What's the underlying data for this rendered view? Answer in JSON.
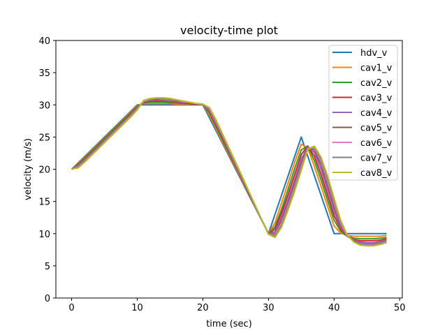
{
  "chart_data": {
    "type": "line",
    "title": "velocity-time plot",
    "xlabel": "time (sec)",
    "ylabel": "velocity (m/s)",
    "xlim": [
      -2.4,
      50.4
    ],
    "ylim": [
      0,
      40
    ],
    "xticks": [
      0,
      10,
      20,
      30,
      40,
      50
    ],
    "yticks": [
      0,
      5,
      10,
      15,
      20,
      25,
      30,
      35,
      40
    ],
    "grid": false,
    "legend_position": "top-right",
    "x": [
      0,
      1,
      2,
      3,
      4,
      5,
      6,
      7,
      8,
      9,
      10,
      11,
      12,
      13,
      14,
      15,
      16,
      17,
      18,
      19,
      20,
      21,
      22,
      23,
      24,
      25,
      26,
      27,
      28,
      29,
      30,
      31,
      32,
      33,
      34,
      35,
      36,
      37,
      38,
      39,
      40,
      41,
      42,
      43,
      44,
      45,
      46,
      47,
      48
    ],
    "series": [
      {
        "name": "hdv_v",
        "color": "#1f77b4",
        "values": [
          20,
          21,
          22,
          23,
          24,
          25,
          26,
          27,
          28,
          29,
          30,
          30,
          30,
          30,
          30,
          30,
          30,
          30,
          30,
          30,
          30,
          28,
          26,
          24,
          22,
          20,
          18,
          16,
          14,
          12,
          10,
          13,
          16,
          19,
          22,
          25,
          22,
          19,
          16,
          13,
          10,
          10,
          10,
          10,
          10,
          10,
          10,
          10,
          10
        ]
      },
      {
        "name": "cav1_v",
        "color": "#ff7f0e",
        "values": [
          20,
          20.9,
          21.9,
          22.9,
          23.9,
          24.9,
          25.9,
          26.9,
          27.9,
          28.9,
          29.9,
          30.2,
          30.2,
          30.2,
          30.2,
          30.2,
          30.1,
          30.1,
          30.1,
          30.1,
          30.1,
          28.4,
          26.3,
          24.2,
          22.2,
          20.2,
          18.2,
          16.2,
          14.1,
          12.1,
          10,
          11.7,
          14.8,
          17.9,
          21.1,
          23.9,
          23.3,
          20.4,
          17.4,
          14.3,
          11.2,
          10.1,
          9.7,
          9.6,
          9.6,
          9.6,
          9.6,
          9.6,
          9.7
        ]
      },
      {
        "name": "cav2_v",
        "color": "#2ca02c",
        "values": [
          20,
          20.8,
          21.8,
          22.8,
          23.8,
          24.8,
          25.8,
          26.8,
          27.8,
          28.8,
          29.8,
          30.3,
          30.4,
          30.4,
          30.4,
          30.3,
          30.3,
          30.2,
          30.2,
          30.1,
          30.1,
          28.7,
          26.6,
          24.5,
          22.4,
          20.4,
          18.4,
          16.3,
          14.2,
          12.1,
          10,
          11.1,
          13.8,
          16.9,
          20.1,
          23,
          23.6,
          21.3,
          18.4,
          15.2,
          12.1,
          10.4,
          9.6,
          9.3,
          9.2,
          9.2,
          9.2,
          9.3,
          9.4
        ]
      },
      {
        "name": "cav3_v",
        "color": "#d62728",
        "values": [
          20,
          20.7,
          21.6,
          22.6,
          23.6,
          24.6,
          25.6,
          26.6,
          27.6,
          28.6,
          29.7,
          30.4,
          30.6,
          30.6,
          30.6,
          30.5,
          30.4,
          30.3,
          30.2,
          30.1,
          30.1,
          28.9,
          26.9,
          24.8,
          22.6,
          20.5,
          18.4,
          16.3,
          14.2,
          12.1,
          10,
          10.7,
          13.2,
          16.1,
          19.2,
          22.3,
          23.6,
          22,
          19.2,
          16,
          12.8,
          10.7,
          9.6,
          9.1,
          8.9,
          8.9,
          8.9,
          9,
          9.2
        ]
      },
      {
        "name": "cav4_v",
        "color": "#9467bd",
        "values": [
          20,
          20.6,
          21.5,
          22.5,
          23.5,
          24.5,
          25.5,
          26.5,
          27.5,
          28.5,
          29.6,
          30.5,
          30.7,
          30.8,
          30.7,
          30.6,
          30.5,
          30.4,
          30.3,
          30.2,
          30.1,
          29.1,
          27.1,
          25,
          22.8,
          20.6,
          18.5,
          16.4,
          14.2,
          12.1,
          10,
          10.3,
          12.6,
          15.4,
          18.4,
          21.6,
          23.5,
          22.6,
          20,
          16.8,
          13.5,
          11,
          9.6,
          9,
          8.7,
          8.6,
          8.6,
          8.8,
          9
        ]
      },
      {
        "name": "cav5_v",
        "color": "#8c564b",
        "values": [
          20,
          20.5,
          21.4,
          22.4,
          23.4,
          24.4,
          25.4,
          26.4,
          27.4,
          28.4,
          29.5,
          30.6,
          30.8,
          30.9,
          30.8,
          30.7,
          30.6,
          30.5,
          30.3,
          30.2,
          30.1,
          29.3,
          27.3,
          25.2,
          23,
          20.8,
          18.6,
          16.4,
          14.3,
          12.1,
          10,
          10,
          12.1,
          14.8,
          17.8,
          21,
          23.4,
          23,
          20.7,
          17.5,
          14.2,
          11.3,
          9.6,
          8.9,
          8.5,
          8.4,
          8.4,
          8.6,
          8.9
        ]
      },
      {
        "name": "cav6_v",
        "color": "#e377c2",
        "values": [
          20,
          20.4,
          21.3,
          22.3,
          23.3,
          24.3,
          25.3,
          26.3,
          27.3,
          28.3,
          29.4,
          30.6,
          30.9,
          31,
          30.9,
          30.8,
          30.7,
          30.5,
          30.4,
          30.2,
          30.1,
          29.4,
          27.4,
          25.3,
          23.1,
          20.9,
          18.7,
          16.5,
          14.3,
          12.1,
          9.9,
          9.8,
          11.7,
          14.4,
          17.3,
          20.5,
          23.3,
          23.3,
          21.2,
          18.1,
          14.7,
          11.6,
          9.7,
          8.8,
          8.4,
          8.3,
          8.3,
          8.5,
          8.8
        ]
      },
      {
        "name": "cav7_v",
        "color": "#7f7f7f",
        "values": [
          20,
          20.3,
          21.2,
          22.2,
          23.2,
          24.2,
          25.2,
          26.2,
          27.2,
          28.2,
          29.3,
          30.7,
          31,
          31,
          31,
          30.9,
          30.7,
          30.6,
          30.4,
          30.2,
          30.1,
          29.5,
          27.6,
          25.4,
          23.2,
          21,
          18.8,
          16.5,
          14.3,
          12.1,
          9.9,
          9.6,
          11.3,
          14,
          16.9,
          20.1,
          23.2,
          23.5,
          21.6,
          18.6,
          15.2,
          11.9,
          9.8,
          8.8,
          8.3,
          8.2,
          8.2,
          8.4,
          8.7
        ]
      },
      {
        "name": "cav8_v",
        "color": "#bcbd22",
        "values": [
          20,
          20.2,
          21.1,
          22.1,
          23.1,
          24.1,
          25.1,
          26.1,
          27.1,
          28.1,
          29.2,
          30.7,
          31,
          31.1,
          31.1,
          31,
          30.8,
          30.6,
          30.4,
          30.2,
          30.1,
          29.6,
          27.7,
          25.5,
          23.3,
          21.1,
          18.9,
          16.6,
          14.4,
          12.1,
          9.9,
          9.4,
          11,
          13.7,
          16.6,
          19.8,
          23.1,
          23.6,
          21.9,
          19,
          15.5,
          12.1,
          9.8,
          8.7,
          8.2,
          8.1,
          8.1,
          8.3,
          8.6
        ]
      }
    ]
  }
}
